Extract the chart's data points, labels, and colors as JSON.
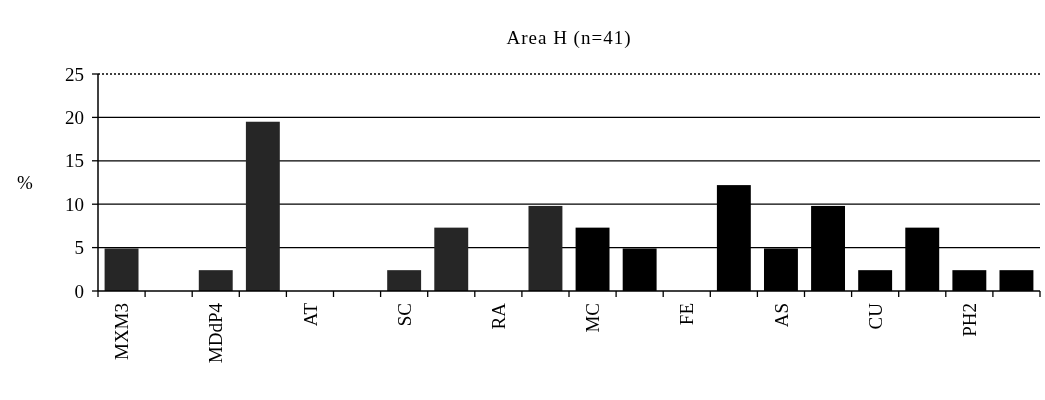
{
  "chart_data": {
    "type": "bar",
    "title": "Area H (n=41)",
    "ylabel": "%",
    "categories": [
      "MXM3",
      null,
      "MDdP4",
      null,
      "AT",
      null,
      "SC",
      null,
      "RA",
      null,
      "MC",
      null,
      "FE",
      null,
      "AS",
      null,
      "CU",
      null,
      "PH2",
      null
    ],
    "values": [
      4.9,
      0,
      2.4,
      19.5,
      0,
      0,
      2.4,
      7.3,
      0,
      9.8,
      7.3,
      4.9,
      0,
      12.2,
      4.9,
      9.8,
      2.4,
      7.3,
      2.4,
      2.4
    ],
    "colors": [
      "#262626",
      "#262626",
      "#262626",
      "#262626",
      "#262626",
      "#262626",
      "#262626",
      "#262626",
      "#262626",
      "#262626",
      "#000000",
      "#000000",
      "#000000",
      "#000000",
      "#000000",
      "#000000",
      "#000000",
      "#000000",
      "#000000",
      "#000000"
    ],
    "ylim": [
      0,
      25
    ],
    "yticks": [
      0,
      5,
      10,
      15,
      20,
      25
    ],
    "grid": "y"
  }
}
